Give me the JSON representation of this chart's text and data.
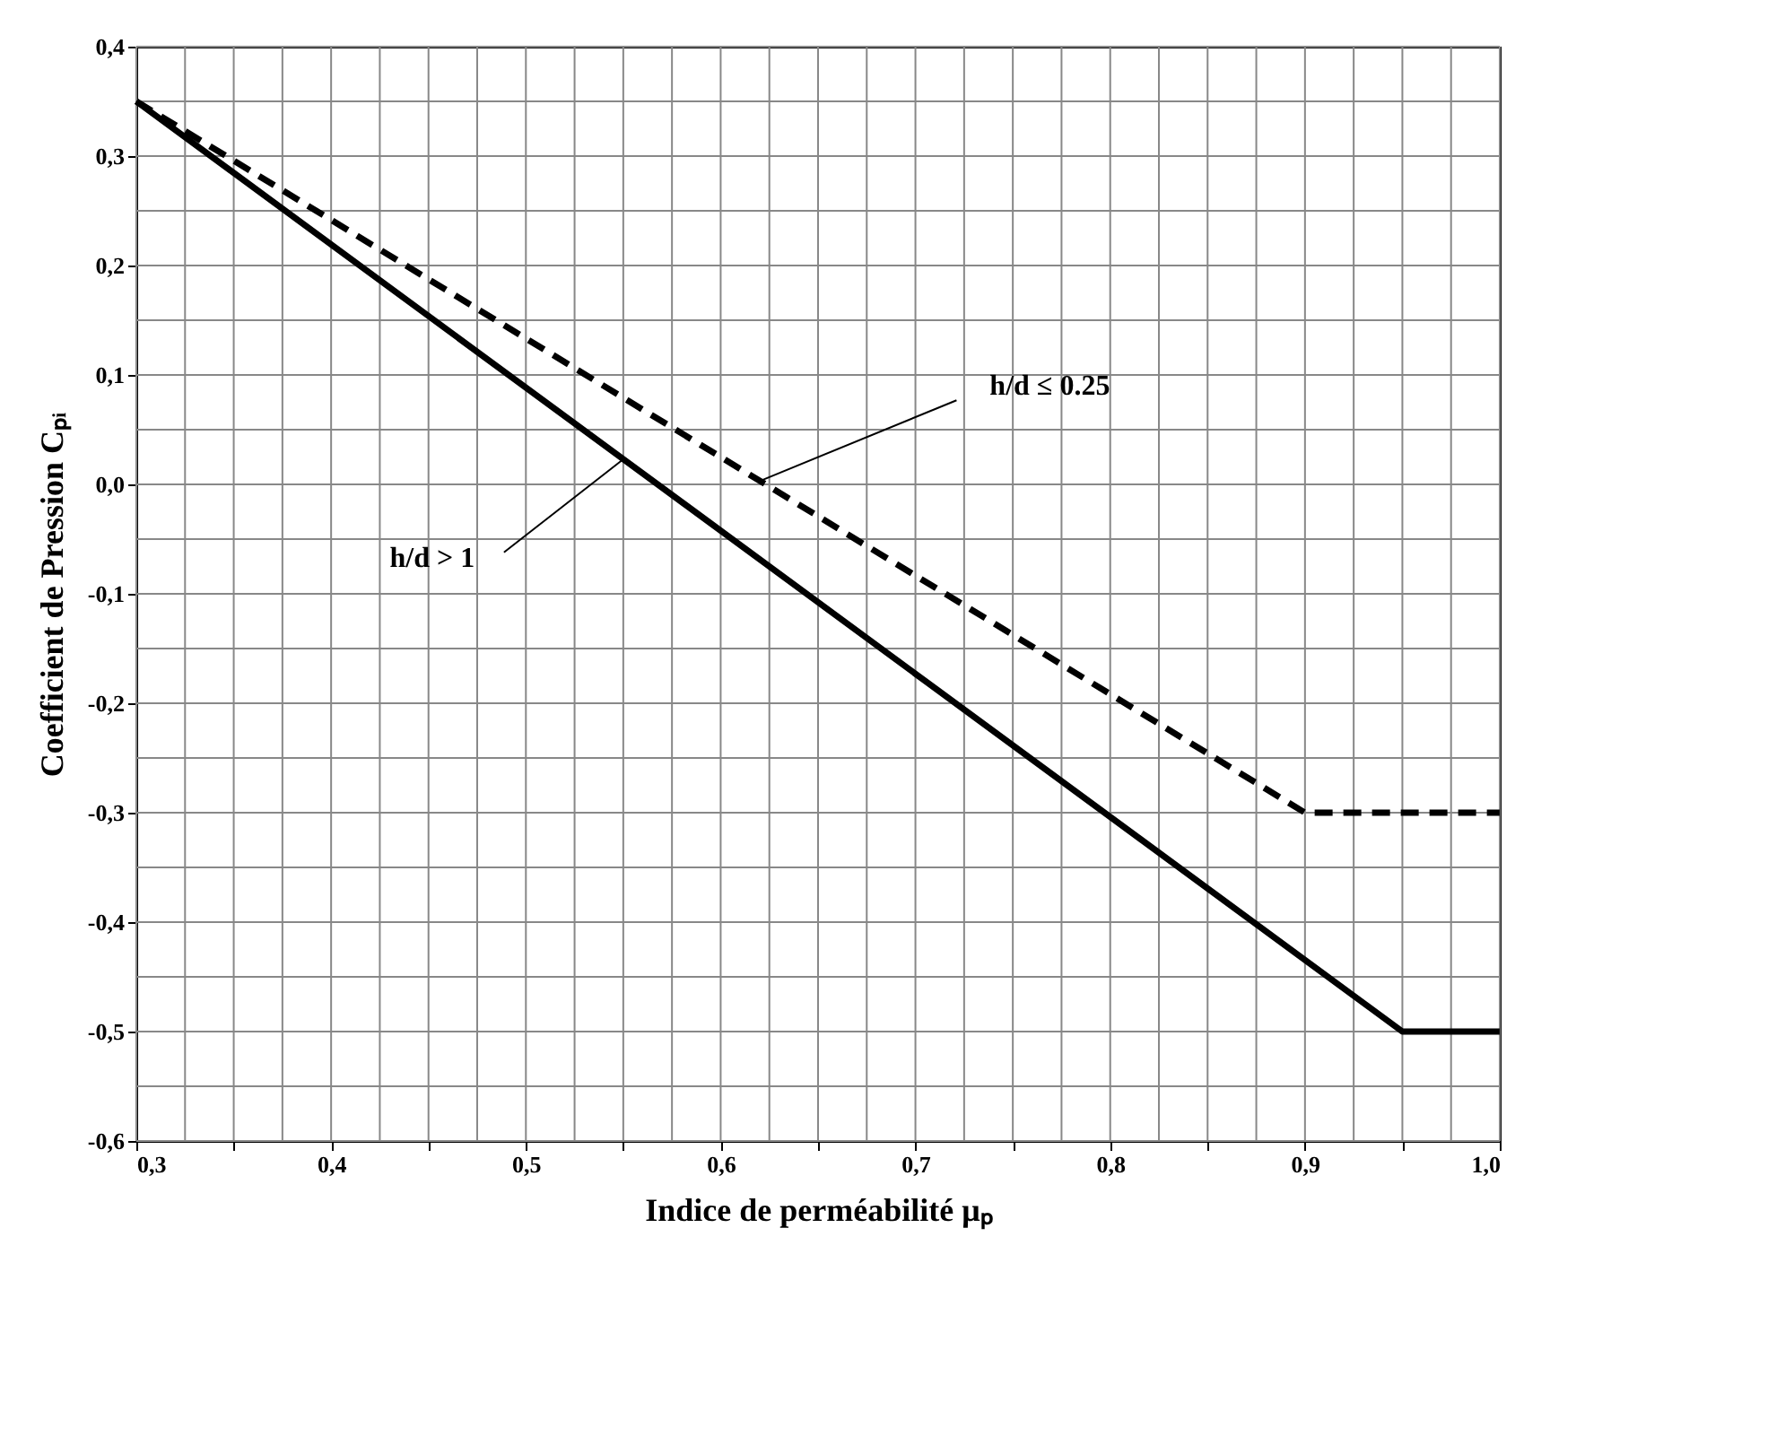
{
  "chart_data": {
    "type": "line",
    "xlabel": "Indice de perméabilité μₚ",
    "ylabel": "Coefficient de Pression Cₚᵢ",
    "series": [
      {
        "color": "#000000",
        "line_style": "dashed",
        "x": [
          0.3,
          0.9,
          1.0
        ],
        "values": [
          0.35,
          -0.3,
          -0.3
        ]
      },
      {
        "color": "#000000",
        "line_style": "solid",
        "x": [
          0.3,
          0.95,
          1.0
        ],
        "values": [
          0.35,
          -0.5,
          -0.5
        ]
      }
    ],
    "xlim": [
      0.3,
      1.0
    ],
    "ylim": [
      -0.6,
      0.4
    ],
    "xticks": [
      {
        "value": 0.3,
        "label": "0,3"
      },
      {
        "value": 0.325,
        "label": null
      },
      {
        "value": 0.35,
        "label": null
      },
      {
        "value": 0.375,
        "label": null
      },
      {
        "value": 0.4,
        "label": "0,4"
      },
      {
        "value": 0.425,
        "label": null
      },
      {
        "value": 0.45,
        "label": null
      },
      {
        "value": 0.475,
        "label": null
      },
      {
        "value": 0.5,
        "label": "0,5"
      },
      {
        "value": 0.525,
        "label": null
      },
      {
        "value": 0.55,
        "label": null
      },
      {
        "value": 0.575,
        "label": null
      },
      {
        "value": 0.6,
        "label": "0,6"
      },
      {
        "value": 0.625,
        "label": null
      },
      {
        "value": 0.65,
        "label": null
      },
      {
        "value": 0.675,
        "label": null
      },
      {
        "value": 0.7,
        "label": "0,7"
      },
      {
        "value": 0.725,
        "label": null
      },
      {
        "value": 0.75,
        "label": null
      },
      {
        "value": 0.775,
        "label": null
      },
      {
        "value": 0.8,
        "label": "0,8"
      },
      {
        "value": 0.825,
        "label": null
      },
      {
        "value": 0.85,
        "label": null
      },
      {
        "value": 0.875,
        "label": null
      },
      {
        "value": 0.9,
        "label": "0,9"
      },
      {
        "value": 0.925,
        "label": null
      },
      {
        "value": 0.95,
        "label": null
      },
      {
        "value": 0.975,
        "label": null
      },
      {
        "value": 1.0,
        "label": "1,0"
      }
    ],
    "yticks": [
      {
        "value": -0.6,
        "label": "-0,6"
      },
      {
        "value": -0.55,
        "label": null
      },
      {
        "value": -0.5,
        "label": "-0,5"
      },
      {
        "value": -0.45,
        "label": null
      },
      {
        "value": -0.4,
        "label": "-0,4"
      },
      {
        "value": -0.35,
        "label": null
      },
      {
        "value": -0.3,
        "label": "-0,3"
      },
      {
        "value": -0.25,
        "label": null
      },
      {
        "value": -0.2,
        "label": "-0,2"
      },
      {
        "value": -0.15,
        "label": null
      },
      {
        "value": -0.1,
        "label": "-0,1"
      },
      {
        "value": -0.05,
        "label": null
      },
      {
        "value": 0.0,
        "label": "0,0"
      },
      {
        "value": 0.05,
        "label": null
      },
      {
        "value": 0.1,
        "label": "0,1"
      },
      {
        "value": 0.15,
        "label": null
      },
      {
        "value": 0.2,
        "label": "0,2"
      },
      {
        "value": 0.25,
        "label": null
      },
      {
        "value": 0.3,
        "label": "0,3"
      },
      {
        "value": 0.35,
        "label": null
      },
      {
        "value": 0.4,
        "label": "0,4"
      }
    ],
    "grid": true,
    "annotations": [
      {
        "text": "h/d ≤ 0.25",
        "x": 0.62,
        "y": 0.003
      },
      {
        "text": "h/d > 1",
        "x": 0.55,
        "y": 0.023
      }
    ]
  }
}
